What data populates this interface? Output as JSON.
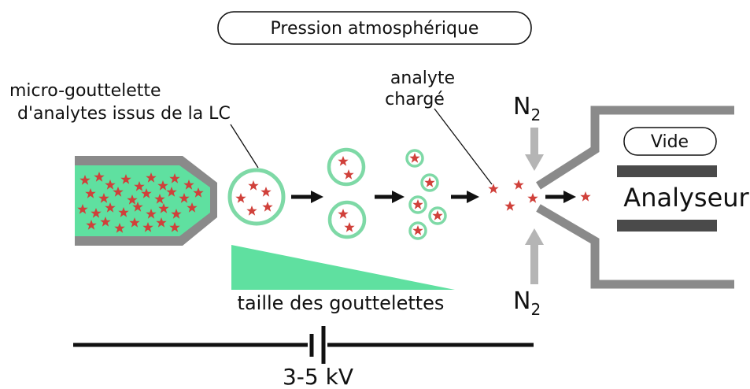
{
  "labels": {
    "pressure": "Pression atmosphérique",
    "droplet_line1": "micro-gouttelette",
    "droplet_line2": "d'analytes issus de la LC",
    "charged_line1": "analyte",
    "charged_line2": "chargé",
    "n2_symbol": "N",
    "n2_subscript": "2",
    "vacuum": "Vide",
    "analyzer": "Analyseur",
    "droplet_size": "taille des gouttelettes",
    "voltage": "3-5 kV"
  },
  "colors": {
    "liquid_green": "#5fe0a0",
    "droplet_ring": "#7ed9a6",
    "analyte_red": "#d0403a",
    "nozzle_gray": "#8a8a8a",
    "gas_arrow_gray": "#b5b5b5",
    "plate_dark": "#4a4a4a",
    "wire_black": "#111111"
  }
}
